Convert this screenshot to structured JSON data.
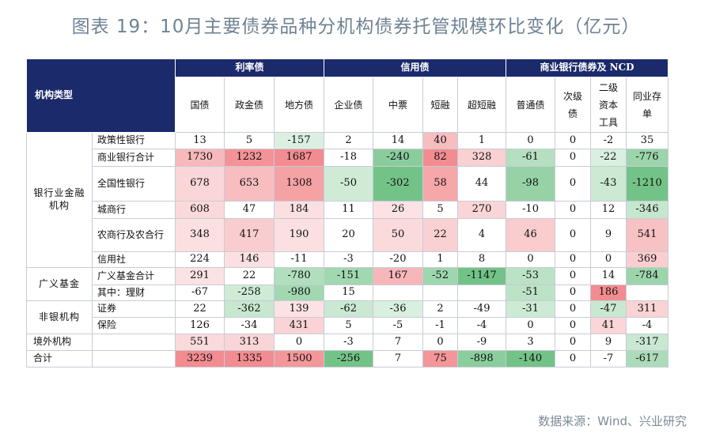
{
  "title": "图表 19：10月主要债券品种分机构债券托管规模环比变化（亿元）",
  "source": "数据来源：Wind、兴业研究",
  "header": {
    "corner": "机构类型",
    "groups": [
      "利率债",
      "信用债",
      "商业银行债券及 NCD"
    ],
    "columns": [
      "国债",
      "政金债",
      "地方债",
      "企业债",
      "中票",
      "短融",
      "超短融",
      "普通债",
      "次级债",
      "二级资本工具",
      "同业存单"
    ]
  },
  "colors": {
    "header_bg": "#1b2a6b",
    "positive_tint": "#f8c4c6",
    "negative_tint": "#a8dbb5"
  },
  "rows": [
    {
      "group": "银行业金融机构",
      "label": "政策性银行",
      "values": [
        "13",
        "5",
        "-157",
        "2",
        "14",
        "40",
        "1",
        "0",
        "0",
        "-2",
        "35"
      ]
    },
    {
      "group": "银行业金融机构",
      "label": "商业银行合计",
      "values": [
        "1730",
        "1232",
        "1687",
        "-18",
        "-240",
        "82",
        "328",
        "-61",
        "0",
        "-22",
        "-776"
      ]
    },
    {
      "group": "银行业金融机构",
      "label": "全国性银行",
      "values": [
        "678",
        "653",
        "1308",
        "-50",
        "-302",
        "58",
        "44",
        "-98",
        "0",
        "-43",
        "-1210"
      ]
    },
    {
      "group": "银行业金融机构",
      "label": "城商行",
      "values": [
        "608",
        "47",
        "184",
        "11",
        "26",
        "5",
        "270",
        "-10",
        "0",
        "12",
        "-346"
      ]
    },
    {
      "group": "银行业金融机构",
      "label": "农商行及农合行",
      "values": [
        "348",
        "417",
        "190",
        "20",
        "50",
        "22",
        "4",
        "46",
        "0",
        "9",
        "541"
      ]
    },
    {
      "group": "银行业金融机构",
      "label": "信用社",
      "values": [
        "224",
        "146",
        "-11",
        "-3",
        "-20",
        "1",
        "8",
        "0",
        "0",
        "0",
        "369"
      ]
    },
    {
      "group": "广义基金",
      "label": "广义基金合计",
      "values": [
        "291",
        "22",
        "-780",
        "-151",
        "167",
        "-52",
        "-1147",
        "-53",
        "0",
        "14",
        "-784"
      ]
    },
    {
      "group": "广义基金",
      "label": "其中：理财",
      "values": [
        "-67",
        "-258",
        "-980",
        "15",
        "",
        "",
        "",
        "-51",
        "0",
        "186",
        ""
      ]
    },
    {
      "group": "非银机构",
      "label": "证券",
      "values": [
        "22",
        "-362",
        "139",
        "-62",
        "-36",
        "2",
        "-49",
        "-31",
        "0",
        "-47",
        "311"
      ]
    },
    {
      "group": "非银机构",
      "label": "保险",
      "values": [
        "126",
        "-34",
        "431",
        "5",
        "-5",
        "-1",
        "-4",
        "0",
        "0",
        "41",
        "-4"
      ]
    },
    {
      "group": "境外机构",
      "label": "",
      "values": [
        "551",
        "313",
        "0",
        "-3",
        "7",
        "0",
        "-9",
        "3",
        "0",
        "9",
        "-317"
      ]
    },
    {
      "group": "合计",
      "label": "",
      "values": [
        "3239",
        "1335",
        "1500",
        "-256",
        "7",
        "75",
        "-898",
        "-140",
        "0",
        "-7",
        "-617"
      ]
    }
  ]
}
